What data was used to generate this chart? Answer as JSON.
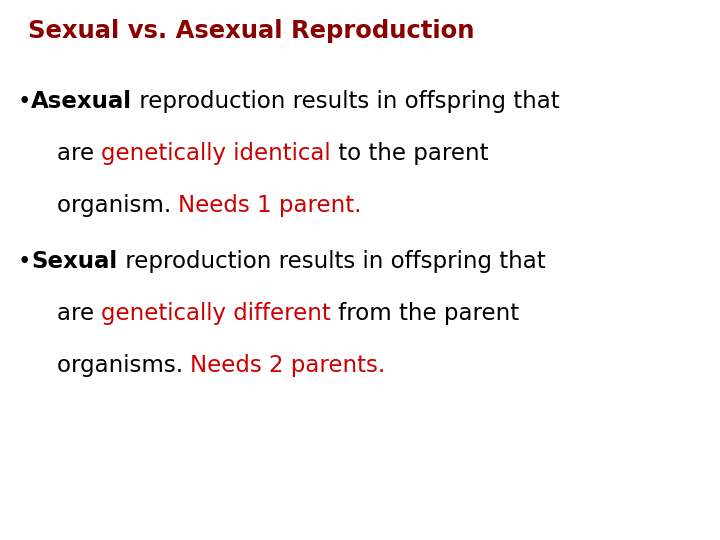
{
  "title": "Sexual vs. Asexual Reproduction",
  "title_color": "#8B0000",
  "title_fontsize": 17.5,
  "background_color": "#ffffff",
  "black_color": "#000000",
  "red_color": "#cc0000",
  "fontsize": 16.5,
  "bullet1_lines": [
    [
      {
        "text": "•",
        "color": "#000000",
        "bold": false
      },
      {
        "text": "Asexual",
        "color": "#000000",
        "bold": true
      },
      {
        "text": " reproduction results in offspring that",
        "color": "#000000",
        "bold": false
      }
    ],
    [
      {
        "text": "are ",
        "color": "#000000",
        "bold": false
      },
      {
        "text": "genetically identical",
        "color": "#cc0000",
        "bold": false
      },
      {
        "text": " to the parent",
        "color": "#000000",
        "bold": false
      }
    ],
    [
      {
        "text": "organism. ",
        "color": "#000000",
        "bold": false
      },
      {
        "text": "Needs 1 parent.",
        "color": "#cc0000",
        "bold": false
      }
    ]
  ],
  "bullet2_lines": [
    [
      {
        "text": "•",
        "color": "#000000",
        "bold": false
      },
      {
        "text": "Sexual",
        "color": "#000000",
        "bold": true
      },
      {
        "text": " reproduction results in offspring that",
        "color": "#000000",
        "bold": false
      }
    ],
    [
      {
        "text": "are ",
        "color": "#000000",
        "bold": false
      },
      {
        "text": "genetically different",
        "color": "#cc0000",
        "bold": false
      },
      {
        "text": " from the parent",
        "color": "#000000",
        "bold": false
      }
    ],
    [
      {
        "text": "organisms. ",
        "color": "#000000",
        "bold": false
      },
      {
        "text": "Needs 2 parents.",
        "color": "#cc0000",
        "bold": false
      }
    ]
  ]
}
